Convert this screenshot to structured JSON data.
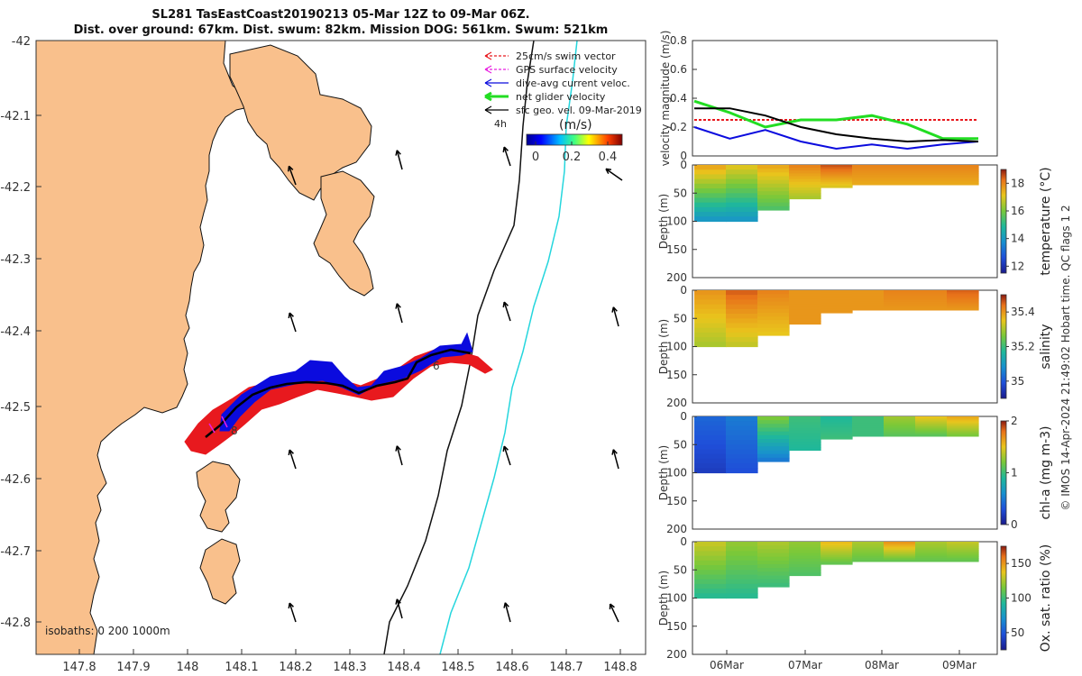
{
  "title": {
    "line1": "SL281 TasEastCoast20190213 05-Mar 12Z to 09-Mar 06Z.",
    "line2": "Dist. over ground: 67km. Dist. swum: 82km. Mission DOG: 561km. Swum: 521km"
  },
  "map": {
    "lon_ticks": [
      "147.8",
      "147.9",
      "148",
      "148.1",
      "148.2",
      "148.3",
      "148.4",
      "148.5",
      "148.6",
      "148.7",
      "148.8"
    ],
    "lat_ticks": [
      "-42",
      "-42.1",
      "-42.2",
      "-42.3",
      "-42.4",
      "-42.5",
      "-42.6",
      "-42.7",
      "-42.8"
    ],
    "legend": [
      "25cm/s swim vector",
      "GPS surface velocity",
      "dive-avg current veloc.",
      "net glider velocity",
      "sfc geo. vel. 09-Mar-2019"
    ],
    "legend_colors": [
      "#e8191e",
      "#e81ee0",
      "#0b0bde",
      "#22dd22",
      "#000000"
    ],
    "scale_label": "4h",
    "colorbar_unit": "(m/s)",
    "colorbar_ticks": [
      "0",
      "0.2",
      "0.4"
    ],
    "isobaths_label": "isobaths: 0   200  1000m",
    "track_labels": [
      "6",
      "8"
    ],
    "land_color": "#f9c08c",
    "swim_color": "#e8191e",
    "current_color": "#0b0bde"
  },
  "velocity_panel": {
    "ylabel": "velocity magnitude (m/s)",
    "yticks": [
      "0",
      "0.2",
      "0.4",
      "0.6",
      "0.8"
    ]
  },
  "depth_panels": [
    {
      "ylabel": "Depth (m)",
      "clabel": "temperature (°C)",
      "cticks": [
        "12",
        "14",
        "16",
        "18"
      ]
    },
    {
      "ylabel": "Depth (m)",
      "clabel": "salinity",
      "cticks": [
        "35",
        "35.2",
        "35.4"
      ]
    },
    {
      "ylabel": "Depth (m)",
      "clabel": "chl-a (mg m-3)",
      "cticks": [
        "0",
        "1",
        "2"
      ]
    },
    {
      "ylabel": "Depth (m)",
      "clabel": "Ox. sat. ratio (%)",
      "cticks": [
        "50",
        "100",
        "150"
      ]
    }
  ],
  "depth_ticks": [
    "0",
    "50",
    "100",
    "150",
    "200"
  ],
  "time_ticks": [
    "06Mar",
    "07Mar",
    "08Mar",
    "09Mar"
  ],
  "side_note": "© IMOS 14-Apr-2024 21:49:02 Hobart time. QC flags 1  2",
  "chart_data": [
    {
      "type": "line",
      "title": "",
      "xlabel": "",
      "ylabel": "velocity magnitude (m/s)",
      "ylim": [
        0,
        0.8
      ],
      "x": [
        "05-Mar 12Z",
        "06-Mar 00Z",
        "06-Mar 12Z",
        "07-Mar 00Z",
        "07-Mar 12Z",
        "08-Mar 00Z",
        "08-Mar 12Z",
        "09-Mar 00Z",
        "09-Mar 06Z"
      ],
      "series": [
        {
          "name": "25cm/s swim vector",
          "color": "#e8191e",
          "values": [
            0.25,
            0.25,
            0.25,
            0.25,
            0.25,
            0.25,
            0.25,
            0.25,
            0.25
          ]
        },
        {
          "name": "dive-avg current veloc.",
          "color": "#0b0bde",
          "values": [
            0.2,
            0.12,
            0.18,
            0.1,
            0.05,
            0.08,
            0.05,
            0.08,
            0.1
          ]
        },
        {
          "name": "net glider velocity",
          "color": "#22dd22",
          "values": [
            0.38,
            0.3,
            0.2,
            0.25,
            0.25,
            0.28,
            0.22,
            0.12,
            0.12
          ]
        },
        {
          "name": "sfc geo. vel. 09-Mar-2019",
          "color": "#000000",
          "values": [
            0.33,
            0.33,
            0.28,
            0.2,
            0.15,
            0.12,
            0.1,
            0.11,
            0.1
          ]
        }
      ]
    },
    {
      "type": "heatmap",
      "ylabel": "Depth (m)",
      "colorbar_label": "temperature (°C)",
      "clim": [
        11.5,
        19
      ],
      "ylim": [
        200,
        0
      ],
      "x": [
        "05-Mar 12Z",
        "06-Mar 00Z",
        "06-Mar 12Z",
        "07-Mar 00Z",
        "07-Mar 12Z",
        "08-Mar 00Z",
        "08-Mar 12Z",
        "09-Mar 00Z",
        "09-Mar 06Z"
      ],
      "max_depth": [
        100,
        100,
        80,
        60,
        40,
        35,
        35,
        35,
        35
      ],
      "surface_values": [
        17.5,
        17,
        17.5,
        18,
        18.5,
        18,
        18,
        18,
        18
      ],
      "deep_values": [
        14,
        14,
        15.5,
        16.5,
        17,
        17.5,
        17.5,
        17.5,
        17.5
      ]
    },
    {
      "type": "heatmap",
      "ylabel": "Depth (m)",
      "colorbar_label": "salinity",
      "clim": [
        34.9,
        35.5
      ],
      "ylim": [
        200,
        0
      ],
      "x": [
        "05-Mar 12Z",
        "06-Mar 00Z",
        "06-Mar 12Z",
        "07-Mar 00Z",
        "07-Mar 12Z",
        "08-Mar 00Z",
        "08-Mar 12Z",
        "09-Mar 00Z",
        "09-Mar 06Z"
      ],
      "max_depth": [
        100,
        100,
        80,
        60,
        40,
        35,
        35,
        35,
        35
      ],
      "surface_values": [
        35.4,
        35.45,
        35.42,
        35.4,
        35.4,
        35.4,
        35.42,
        35.42,
        35.45
      ],
      "deep_values": [
        35.3,
        35.32,
        35.35,
        35.4,
        35.4,
        35.4,
        35.4,
        35.4,
        35.4
      ]
    },
    {
      "type": "heatmap",
      "ylabel": "Depth (m)",
      "colorbar_label": "chl-a (mg m-3)",
      "clim": [
        0,
        2
      ],
      "ylim": [
        200,
        0
      ],
      "x": [
        "05-Mar 12Z",
        "06-Mar 00Z",
        "06-Mar 12Z",
        "07-Mar 00Z",
        "07-Mar 12Z",
        "08-Mar 00Z",
        "08-Mar 12Z",
        "09-Mar 00Z",
        "09-Mar 06Z"
      ],
      "max_depth": [
        100,
        100,
        80,
        60,
        40,
        35,
        35,
        35,
        35
      ],
      "surface_values": [
        0.4,
        0.5,
        1.2,
        1.0,
        0.9,
        1.0,
        1.3,
        1.5,
        1.6
      ],
      "deep_values": [
        0.2,
        0.3,
        0.5,
        0.9,
        1.0,
        1.0,
        1.1,
        1.1,
        1.2
      ]
    },
    {
      "type": "heatmap",
      "ylabel": "Depth (m)",
      "colorbar_label": "Ox. sat. ratio (%)",
      "clim": [
        25,
        175
      ],
      "ylim": [
        200,
        0
      ],
      "x": [
        "05-Mar 12Z",
        "06-Mar 00Z",
        "06-Mar 12Z",
        "07-Mar 00Z",
        "07-Mar 12Z",
        "08-Mar 00Z",
        "08-Mar 12Z",
        "09-Mar 00Z",
        "09-Mar 06Z"
      ],
      "max_depth": [
        100,
        100,
        80,
        60,
        40,
        35,
        35,
        35,
        35
      ],
      "surface_values": [
        130,
        120,
        125,
        120,
        140,
        125,
        150,
        125,
        130
      ],
      "deep_values": [
        95,
        95,
        100,
        105,
        110,
        110,
        110,
        110,
        110
      ]
    }
  ]
}
